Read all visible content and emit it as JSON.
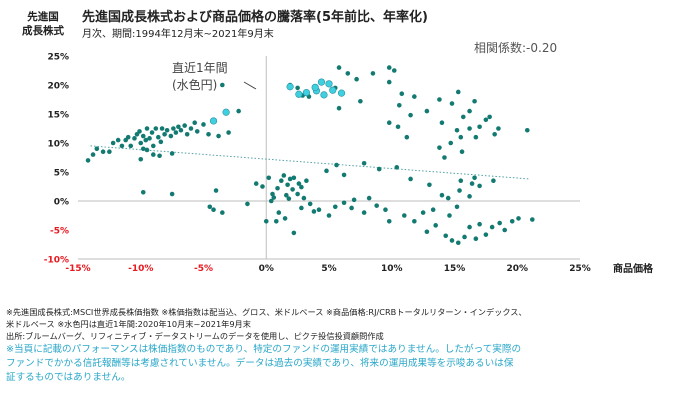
{
  "chart_data": {
    "type": "scatter",
    "title": "先進国成長株式および商品価格の騰落率(5年前比、年率化)",
    "subtitle": "月次、期間:1994年12月末~2021年9月末",
    "ylabel": "先進国\n成長株式",
    "xlabel": "商品価格",
    "xlim": [
      -15,
      25
    ],
    "ylim": [
      -10,
      25
    ],
    "x_ticks": [
      "-15%",
      "-10%",
      "-5%",
      "0%",
      "5%",
      "10%",
      "15%",
      "20%",
      "25%"
    ],
    "y_ticks": [
      "-10%",
      "-5%",
      "0%",
      "5%",
      "10%",
      "15%",
      "20%",
      "25%"
    ],
    "correlation_label": "相関係数:-0.20",
    "annotation": "直近1年間\n(水色円)",
    "grid": false,
    "trendline": {
      "style": "dotted",
      "from": [
        -14,
        9.5
      ],
      "to": [
        21,
        3.8
      ]
    },
    "colors": {
      "history": "#137a72",
      "recent": "#3fd0e0",
      "recent_edge": "#2a8fa2",
      "trend": "#4f9fa3",
      "axis_neg": "#e8191f",
      "axis_pos": "#222222"
    },
    "series": [
      {
        "values": [
          [
            -14.2,
            7
          ],
          [
            -13.8,
            8
          ],
          [
            -13,
            8.5
          ],
          [
            -13.5,
            9
          ],
          [
            -12.2,
            10
          ],
          [
            -12.5,
            8.5
          ],
          [
            -11.8,
            10.5
          ],
          [
            -11.5,
            9.5
          ],
          [
            -11.2,
            10.5
          ],
          [
            -11,
            11
          ],
          [
            -10.8,
            9.5
          ],
          [
            -10.5,
            10.8
          ],
          [
            -10.3,
            11.5
          ],
          [
            -10,
            10
          ],
          [
            -10.1,
            12
          ],
          [
            -9.8,
            11.2
          ],
          [
            -9.6,
            10.5
          ],
          [
            -9.5,
            12.5
          ],
          [
            -9.3,
            10.8
          ],
          [
            -9.1,
            11.8
          ],
          [
            -9,
            9.5
          ],
          [
            -8.8,
            12.5
          ],
          [
            -8.6,
            11
          ],
          [
            -8.4,
            10.2
          ],
          [
            -8.3,
            12.5
          ],
          [
            -8.1,
            11.5
          ],
          [
            -7.9,
            12.2
          ],
          [
            -7.6,
            11.2
          ],
          [
            -7.4,
            12.5
          ],
          [
            -7.2,
            11.8
          ],
          [
            -7,
            12.8
          ],
          [
            -6.8,
            12.2
          ],
          [
            -6.5,
            13
          ],
          [
            -6.3,
            11.5
          ],
          [
            -6,
            12.5
          ],
          [
            -5.7,
            13.5
          ],
          [
            -5.5,
            12
          ],
          [
            -5,
            13.2
          ],
          [
            -4.6,
            11.5
          ],
          [
            -3.8,
            11.2
          ],
          [
            -3,
            11.8
          ],
          [
            -2.2,
            15.5
          ],
          [
            -3.5,
            20
          ],
          [
            -9.8,
            9
          ],
          [
            -9.5,
            8.8
          ],
          [
            -9,
            8
          ],
          [
            -10,
            7.2
          ],
          [
            -8.5,
            7.8
          ],
          [
            -7.5,
            8.2
          ],
          [
            -9.8,
            1.5
          ],
          [
            -7.5,
            1.2
          ],
          [
            -4,
            1.8
          ],
          [
            -4.5,
            -1
          ],
          [
            -4.2,
            -1.5
          ],
          [
            -3.5,
            -2
          ],
          [
            -1.5,
            -0.5
          ],
          [
            0,
            -3.5
          ],
          [
            0.8,
            -3.5
          ],
          [
            1.5,
            -3
          ],
          [
            1,
            -2
          ],
          [
            0.4,
            0
          ],
          [
            0.5,
            1.2
          ],
          [
            0.9,
            2.2
          ],
          [
            1.2,
            3.5
          ],
          [
            1.6,
            1
          ],
          [
            1.7,
            2.8
          ],
          [
            1.9,
            3.8
          ],
          [
            2.1,
            2
          ],
          [
            2.2,
            4
          ],
          [
            2.5,
            1.2
          ],
          [
            2.6,
            3
          ],
          [
            2.8,
            2.4
          ],
          [
            3,
            0.5
          ],
          [
            3.2,
            3.5
          ],
          [
            1.4,
            4.4
          ],
          [
            0.2,
            4
          ],
          [
            -0.3,
            2.5
          ],
          [
            -0.8,
            3
          ],
          [
            0.6,
            0.6
          ],
          [
            1.8,
            0.4
          ],
          [
            2.8,
            -1.2
          ],
          [
            3.5,
            -0.5
          ],
          [
            4.2,
            -1.5
          ],
          [
            5,
            -2.5
          ],
          [
            5.5,
            -1
          ],
          [
            6.2,
            -0.3
          ],
          [
            7,
            0.2
          ],
          [
            8.2,
            0.5
          ],
          [
            8.8,
            -0.8
          ],
          [
            9.5,
            -1.5
          ],
          [
            2.2,
            -5.5
          ],
          [
            3.8,
            -1.8
          ],
          [
            4.8,
            5.2
          ],
          [
            5.6,
            6.2
          ],
          [
            6.2,
            4.5
          ],
          [
            7.8,
            6.5
          ],
          [
            9,
            5.5
          ],
          [
            10.4,
            5.8
          ],
          [
            11.5,
            3.8
          ],
          [
            13,
            2.8
          ],
          [
            14,
            1
          ],
          [
            14.5,
            0.5
          ],
          [
            15.4,
            1.8
          ],
          [
            16.2,
            0.8
          ],
          [
            17,
            2.6
          ],
          [
            18.1,
            3.5
          ],
          [
            16.6,
            4
          ],
          [
            16.4,
            3
          ],
          [
            15.5,
            3.5
          ],
          [
            15.2,
            -1
          ],
          [
            14.6,
            -2.5
          ],
          [
            13.5,
            -4.2
          ],
          [
            12.8,
            -5.3
          ],
          [
            14.3,
            -6
          ],
          [
            14.8,
            -6.8
          ],
          [
            15.3,
            -7.2
          ],
          [
            15.8,
            -6.2
          ],
          [
            16.2,
            -4.5
          ],
          [
            16.7,
            -6.5
          ],
          [
            17,
            -4
          ],
          [
            17.5,
            -5.8
          ],
          [
            18,
            -4.5
          ],
          [
            18.6,
            -3.8
          ],
          [
            19,
            -5
          ],
          [
            19.6,
            -3.5
          ],
          [
            20.1,
            -3
          ],
          [
            21.2,
            -3.2
          ],
          [
            11,
            -2.5
          ],
          [
            11.8,
            -3.5
          ],
          [
            12.5,
            -2
          ],
          [
            13.3,
            -1.5
          ],
          [
            7.8,
            -2
          ],
          [
            9.8,
            -3.5
          ],
          [
            6.8,
            -1.2
          ],
          [
            5.8,
            23
          ],
          [
            6.5,
            22
          ],
          [
            8.5,
            22
          ],
          [
            9.8,
            23
          ],
          [
            10.2,
            22.5
          ],
          [
            7.2,
            21
          ],
          [
            5.5,
            19.5
          ],
          [
            3.4,
            18
          ],
          [
            5.8,
            16
          ],
          [
            7.5,
            17.2
          ],
          [
            9.8,
            20.5
          ],
          [
            10.8,
            18.5
          ],
          [
            11.8,
            18
          ],
          [
            12.8,
            15.5
          ],
          [
            13.8,
            17.5
          ],
          [
            14.8,
            16.8
          ],
          [
            15.3,
            18.8
          ],
          [
            16.6,
            17.2
          ],
          [
            10.6,
            16.5
          ],
          [
            11.5,
            14.8
          ],
          [
            14,
            13.5
          ],
          [
            15.7,
            14.5
          ],
          [
            16.2,
            15.5
          ],
          [
            17.5,
            14
          ],
          [
            17.8,
            14.5
          ],
          [
            15.2,
            12.2
          ],
          [
            16.2,
            12.5
          ],
          [
            16.7,
            11
          ],
          [
            15.5,
            11
          ],
          [
            14.7,
            10
          ],
          [
            13.8,
            9.2
          ],
          [
            15.6,
            8.5
          ],
          [
            14.2,
            7.5
          ],
          [
            17,
            12.8
          ],
          [
            18.2,
            11.5
          ],
          [
            18.5,
            12.5
          ],
          [
            10.5,
            12.8
          ],
          [
            11.2,
            11
          ],
          [
            9.8,
            13.5
          ],
          [
            20.8,
            12.2
          ],
          [
            2.5,
            19.5
          ],
          [
            2.9,
            18.2
          ],
          [
            1.9,
            20
          ]
        ]
      },
      {
        "values": [
          [
            -4.2,
            13.8
          ],
          [
            -3.2,
            15.3
          ],
          [
            1.9,
            19.7
          ],
          [
            2.6,
            18.4
          ],
          [
            3.2,
            18.7
          ],
          [
            4,
            19
          ],
          [
            4.6,
            18.3
          ],
          [
            5,
            20.2
          ],
          [
            5.3,
            19.1
          ],
          [
            6,
            18.6
          ],
          [
            4.4,
            20.5
          ],
          [
            3.9,
            19.6
          ]
        ]
      }
    ]
  },
  "notes": [
    "※先進国成長株式:MSCI世界成長株価指数 ※株価指数は配当込、グロス、米ドルベース ※商品価格:RJ/CRBトータルリターン・インデックス、",
    "米ドルベース ※水色円は直近1年間:2020年10月末~2021年9月末",
    "出所:ブルームバーグ、リフィニティブ・データストリームのデータを使用し、ピクテ投信投資顧問作成"
  ],
  "disclaimer": [
    "※当頁に記載のパフォーマンスは株価指数のものであり、特定のファンドの運用実績ではありません。したがって実際の",
    "ファンドでかかる信託報酬等は考慮されていません。データは過去の実績であり、将来の運用成果等を示唆あるいは保",
    "証するものではありません。"
  ]
}
